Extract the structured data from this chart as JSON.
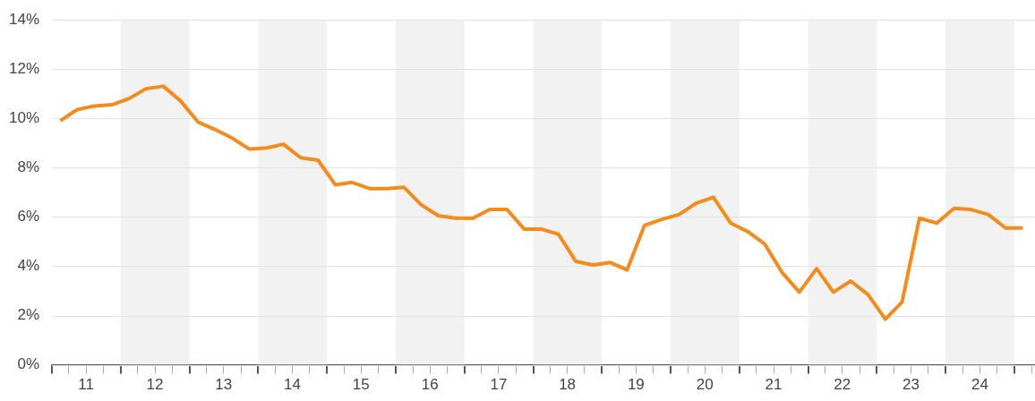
{
  "chart_data": {
    "type": "line",
    "x": [
      "2011-02-15",
      "2011-05-15",
      "2011-08-15",
      "2011-11-15",
      "2012-02-15",
      "2012-05-15",
      "2012-08-15",
      "2012-11-15",
      "2013-02-15",
      "2013-05-15",
      "2013-08-15",
      "2013-11-15",
      "2014-02-15",
      "2014-05-15",
      "2014-08-15",
      "2014-11-15",
      "2015-02-15",
      "2015-05-15",
      "2015-08-15",
      "2015-11-15",
      "2016-02-15",
      "2016-05-15",
      "2016-08-15",
      "2016-11-15",
      "2017-02-15",
      "2017-05-15",
      "2017-08-15",
      "2017-11-15",
      "2018-02-15",
      "2018-05-15",
      "2018-08-15",
      "2018-11-15",
      "2019-02-15",
      "2019-05-15",
      "2019-08-15",
      "2019-11-15",
      "2020-02-15",
      "2020-05-15",
      "2020-08-15",
      "2020-11-15",
      "2021-02-15",
      "2021-05-15",
      "2021-08-15",
      "2021-11-15",
      "2022-02-15",
      "2022-05-15",
      "2022-08-15",
      "2022-11-15",
      "2023-02-15",
      "2023-05-15",
      "2023-08-15",
      "2023-11-15",
      "2024-02-15",
      "2024-05-15",
      "2024-08-15",
      "2024-11-15",
      "2025-02-15"
    ],
    "series": [
      {
        "color": "#f28c1c",
        "values": [
          9.9,
          10.35,
          10.5,
          10.55,
          10.8,
          11.2,
          11.3,
          10.7,
          9.85,
          9.55,
          9.2,
          8.75,
          8.8,
          8.95,
          8.4,
          8.3,
          7.3,
          7.4,
          7.15,
          7.15,
          7.2,
          6.5,
          6.05,
          5.95,
          5.95,
          6.3,
          6.3,
          5.5,
          5.5,
          5.3,
          4.2,
          4.05,
          4.15,
          3.85,
          5.65,
          5.9,
          6.1,
          6.55,
          6.8,
          5.75,
          5.4,
          4.9,
          3.75,
          2.95,
          3.9,
          2.95,
          3.4,
          2.85,
          1.85,
          2.55,
          5.95,
          5.75,
          6.35,
          6.3,
          6.1,
          5.55,
          5.55
        ]
      }
    ],
    "xlim": [
      "2011-01-01",
      "2025-04-20"
    ],
    "xticks": [
      {
        "value": "2011-01-01",
        "label": null
      },
      {
        "value": "2011-04-01",
        "label": null
      },
      {
        "value": "2011-07-01",
        "label": "11"
      },
      {
        "value": "2011-10-01",
        "label": null
      },
      {
        "value": "2012-01-01",
        "label": null
      },
      {
        "value": "2012-04-01",
        "label": null
      },
      {
        "value": "2012-07-01",
        "label": "12"
      },
      {
        "value": "2012-10-01",
        "label": null
      },
      {
        "value": "2013-01-01",
        "label": null
      },
      {
        "value": "2013-04-01",
        "label": null
      },
      {
        "value": "2013-07-01",
        "label": "13"
      },
      {
        "value": "2013-10-01",
        "label": null
      },
      {
        "value": "2014-01-01",
        "label": null
      },
      {
        "value": "2014-04-01",
        "label": null
      },
      {
        "value": "2014-07-01",
        "label": "14"
      },
      {
        "value": "2014-10-01",
        "label": null
      },
      {
        "value": "2015-01-01",
        "label": null
      },
      {
        "value": "2015-04-01",
        "label": null
      },
      {
        "value": "2015-07-01",
        "label": "15"
      },
      {
        "value": "2015-10-01",
        "label": null
      },
      {
        "value": "2016-01-01",
        "label": null
      },
      {
        "value": "2016-04-01",
        "label": null
      },
      {
        "value": "2016-07-01",
        "label": "16"
      },
      {
        "value": "2016-10-01",
        "label": null
      },
      {
        "value": "2017-01-01",
        "label": null
      },
      {
        "value": "2017-04-01",
        "label": null
      },
      {
        "value": "2017-07-01",
        "label": "17"
      },
      {
        "value": "2017-10-01",
        "label": null
      },
      {
        "value": "2018-01-01",
        "label": null
      },
      {
        "value": "2018-04-01",
        "label": null
      },
      {
        "value": "2018-07-01",
        "label": "18"
      },
      {
        "value": "2018-10-01",
        "label": null
      },
      {
        "value": "2019-01-01",
        "label": null
      },
      {
        "value": "2019-04-01",
        "label": null
      },
      {
        "value": "2019-07-01",
        "label": "19"
      },
      {
        "value": "2019-10-01",
        "label": null
      },
      {
        "value": "2020-01-01",
        "label": null
      },
      {
        "value": "2020-04-01",
        "label": null
      },
      {
        "value": "2020-07-01",
        "label": "20"
      },
      {
        "value": "2020-10-01",
        "label": null
      },
      {
        "value": "2021-01-01",
        "label": null
      },
      {
        "value": "2021-04-01",
        "label": null
      },
      {
        "value": "2021-07-01",
        "label": "21"
      },
      {
        "value": "2021-10-01",
        "label": null
      },
      {
        "value": "2022-01-01",
        "label": null
      },
      {
        "value": "2022-04-01",
        "label": null
      },
      {
        "value": "2022-07-01",
        "label": "22"
      },
      {
        "value": "2022-10-01",
        "label": null
      },
      {
        "value": "2023-01-01",
        "label": null
      },
      {
        "value": "2023-04-01",
        "label": null
      },
      {
        "value": "2023-07-01",
        "label": "23"
      },
      {
        "value": "2023-10-01",
        "label": null
      },
      {
        "value": "2024-01-01",
        "label": null
      },
      {
        "value": "2024-04-01",
        "label": null
      },
      {
        "value": "2024-07-01",
        "label": "24"
      },
      {
        "value": "2024-10-01",
        "label": null
      },
      {
        "value": "2025-01-01",
        "label": null
      },
      {
        "value": "2025-04-01",
        "label": null
      }
    ],
    "ylim": [
      0,
      14
    ],
    "yticks": [
      {
        "value": 0,
        "label": "0%"
      },
      {
        "value": 2,
        "label": "2%"
      },
      {
        "value": 4,
        "label": "4%"
      },
      {
        "value": 6,
        "label": "6%"
      },
      {
        "value": 8,
        "label": "8%"
      },
      {
        "value": 10,
        "label": "10%"
      },
      {
        "value": 12,
        "label": "12%"
      },
      {
        "value": 14,
        "label": "14%"
      }
    ],
    "bands": [
      {
        "axis": "x",
        "from": "2012-01-01",
        "to": "2013-01-01",
        "color": "#f2f2f2"
      },
      {
        "axis": "x",
        "from": "2014-01-01",
        "to": "2015-01-01",
        "color": "#f2f2f2"
      },
      {
        "axis": "x",
        "from": "2016-01-01",
        "to": "2017-01-01",
        "color": "#f2f2f2"
      },
      {
        "axis": "x",
        "from": "2018-01-01",
        "to": "2019-01-01",
        "color": "#f2f2f2"
      },
      {
        "axis": "x",
        "from": "2020-01-01",
        "to": "2021-01-01",
        "color": "#f2f2f2"
      },
      {
        "axis": "x",
        "from": "2022-01-01",
        "to": "2023-01-01",
        "color": "#f2f2f2"
      },
      {
        "axis": "x",
        "from": "2024-01-01",
        "to": "2025-01-01",
        "color": "#f2f2f2"
      }
    ],
    "grid": "y",
    "legend": false,
    "line_style": "solid",
    "marker": "none"
  }
}
